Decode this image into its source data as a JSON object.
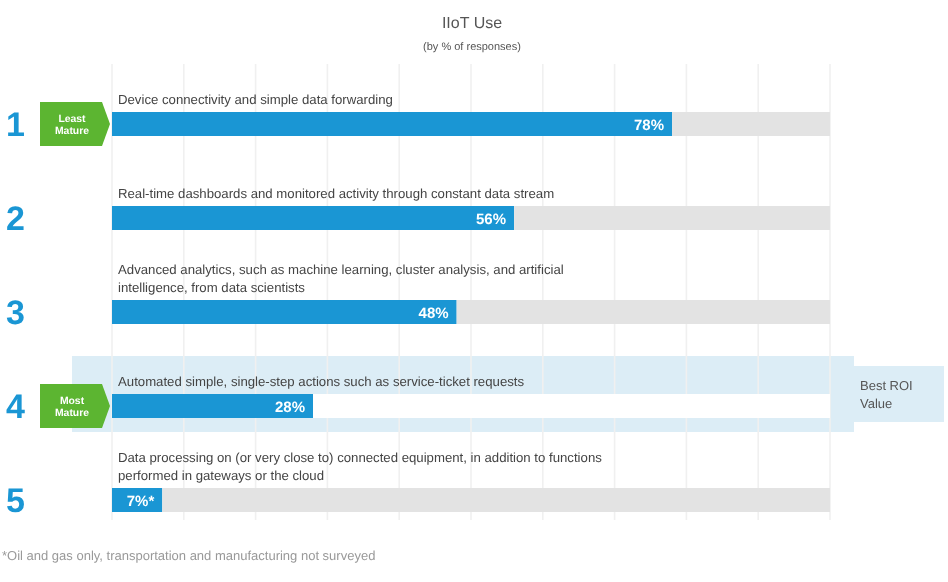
{
  "chart_data": {
    "type": "bar",
    "orientation": "horizontal",
    "stacked": true,
    "title": "IIoT Use",
    "subtitle": "(by % of responses)",
    "categories": [
      "Device connectivity and simple data forwarding",
      "Real-time dashboards and monitored activity through constant data stream",
      "Advanced analytics, such as machine learning, cluster analysis, and artificial intelligence, from data scientists",
      "Automated simple, single-step actions such as service-ticket requests",
      "Data processing on (or very close to) connected equipment, in addition to functions performed in gateways or the cloud"
    ],
    "series": [
      {
        "color": "#1a96d4",
        "values": [
          78,
          56,
          48,
          28,
          7
        ],
        "value_labels": [
          "78%",
          "56%",
          "48%",
          "28%",
          "7%*"
        ]
      },
      {
        "colors": [
          "#e3e3e3",
          "#e3e3e3",
          "#e3e3e3",
          "#ffffff",
          "#e3e3e3"
        ],
        "values": [
          22,
          44,
          52,
          72,
          93
        ]
      }
    ],
    "xlim": [
      0,
      100
    ],
    "xticks": [
      {
        "value": 0,
        "label": null
      },
      {
        "value": 10,
        "label": null
      },
      {
        "value": 20,
        "label": null
      },
      {
        "value": 30,
        "label": null
      },
      {
        "value": 40,
        "label": null
      },
      {
        "value": 50,
        "label": null
      },
      {
        "value": 60,
        "label": null
      },
      {
        "value": 70,
        "label": null
      },
      {
        "value": 80,
        "label": null
      },
      {
        "value": 90,
        "label": null
      },
      {
        "value": 100,
        "label": null
      }
    ],
    "grid": "x",
    "bands": [
      {
        "axis": "y",
        "from": "Automated simple, single-step actions such as service-ticket requests",
        "to": "Automated simple, single-step actions such as service-ticket requests",
        "label": "Best ROI Value",
        "color": "#dcedf6"
      }
    ],
    "annotations": [
      "1",
      "Least Mature",
      "2",
      "3",
      "4",
      "Most Mature",
      "5",
      "*Oil and gas only, transportation and manufacturing not surveyed"
    ]
  }
}
